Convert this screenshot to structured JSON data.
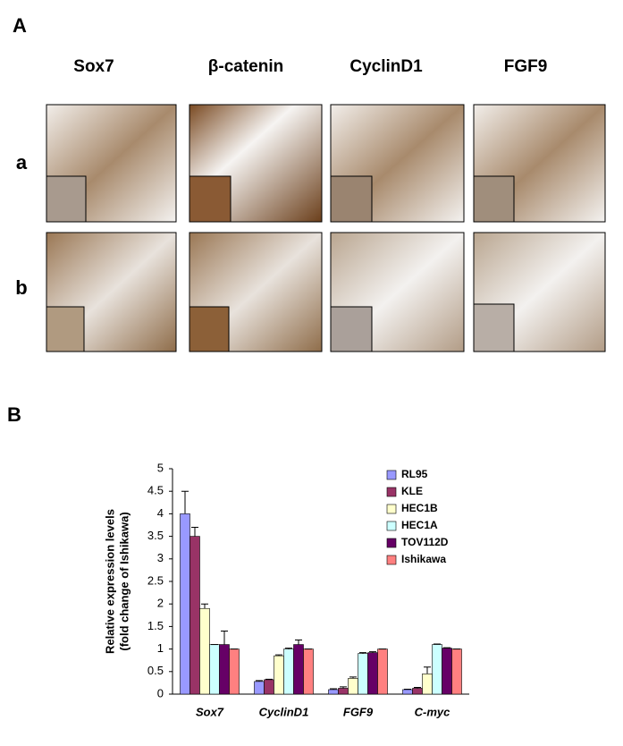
{
  "panel_a": {
    "label": "A",
    "columns": [
      "Sox7",
      "β-catenin",
      "CyclinD1",
      "FGF9"
    ],
    "rows": [
      "a",
      "b"
    ]
  },
  "panel_b_label": "B",
  "chart_data": {
    "type": "bar",
    "categories": [
      "Sox7",
      "CyclinD1",
      "FGF9",
      "C-myc"
    ],
    "ylabel": [
      "Relative expression levels",
      "(fold change of Ishikawa)"
    ],
    "ylim": [
      0,
      5
    ],
    "yticks": [
      0,
      0.5,
      1,
      1.5,
      2,
      2.5,
      3,
      3.5,
      4,
      4.5,
      5
    ],
    "legend": "upper right",
    "series": [
      {
        "name": "RL95",
        "color": "#9999ff",
        "values": [
          4.0,
          0.28,
          0.1,
          0.1
        ],
        "errors": [
          0.5,
          0.02,
          0.02,
          0.01
        ]
      },
      {
        "name": "KLE",
        "color": "#993366",
        "values": [
          3.5,
          0.32,
          0.13,
          0.13
        ],
        "errors": [
          0.2,
          0.01,
          0.03,
          0.02
        ]
      },
      {
        "name": "HEC1B",
        "color": "#ffffcc",
        "values": [
          1.9,
          0.85,
          0.35,
          0.45
        ],
        "errors": [
          0.1,
          0.02,
          0.03,
          0.15
        ]
      },
      {
        "name": "HEC1A",
        "color": "#ccffff",
        "values": [
          1.1,
          1.0,
          0.9,
          1.1
        ],
        "errors": [
          0.0,
          0.02,
          0.02,
          0.01
        ]
      },
      {
        "name": "TOV112D",
        "color": "#660066",
        "values": [
          1.1,
          1.1,
          0.92,
          1.02
        ],
        "errors": [
          0.3,
          0.1,
          0.02,
          0.01
        ]
      },
      {
        "name": "Ishikawa",
        "color": "#ff8080",
        "values": [
          1.0,
          1.0,
          1.0,
          1.0
        ],
        "errors": [
          0.0,
          0.0,
          0.0,
          0.0
        ]
      }
    ]
  }
}
